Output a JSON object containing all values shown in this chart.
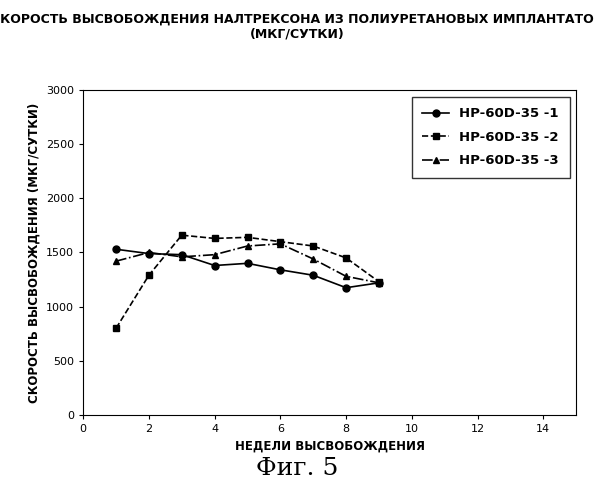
{
  "title_line1": "СКОРОСТЬ ВЫСВОБОЖДЕНИЯ НАЛТРЕКСОНА ИЗ ПОЛИУРЕТАНОВЫХ ИМПЛАНТАТОВ",
  "title_line2": "(МКГ/СУТКИ)",
  "xlabel": "НЕДЕЛИ ВЫСВОБОЖДЕНИЯ",
  "ylabel": "СКОРОСТЬ ВЫСВОБОЖДЕНИЯ (МКГ/СУТКИ)",
  "caption": "Фиг. 5",
  "xlim": [
    0,
    15
  ],
  "ylim": [
    0,
    3000
  ],
  "xticks": [
    0,
    2,
    4,
    6,
    8,
    10,
    12,
    14
  ],
  "yticks": [
    0,
    500,
    1000,
    1500,
    2000,
    2500,
    3000
  ],
  "series": [
    {
      "label": "HP-60D-35 -1",
      "x": [
        1,
        2,
        3,
        4,
        5,
        6,
        7,
        8,
        9
      ],
      "y": [
        1530,
        1490,
        1480,
        1380,
        1400,
        1340,
        1290,
        1175,
        1220
      ],
      "marker": "o",
      "color": "#000000",
      "linestyle": "-"
    },
    {
      "label": "HP-60D-35 -2",
      "x": [
        1,
        2,
        3,
        4,
        5,
        6,
        7,
        8,
        9
      ],
      "y": [
        800,
        1290,
        1660,
        1630,
        1640,
        1600,
        1560,
        1450,
        1230
      ],
      "marker": "s",
      "color": "#000000",
      "linestyle": "--"
    },
    {
      "label": "HP-60D-35 -3",
      "x": [
        1,
        2,
        3,
        4,
        5,
        6,
        7,
        8,
        9
      ],
      "y": [
        1420,
        1500,
        1460,
        1480,
        1560,
        1580,
        1440,
        1280,
        1220
      ],
      "marker": "^",
      "color": "#000000",
      "linestyle": "-."
    }
  ],
  "background_color": "#ffffff",
  "legend_fontsize": 9.5,
  "title_fontsize": 9,
  "axis_label_fontsize": 8.5,
  "tick_fontsize": 8,
  "caption_fontsize": 18
}
